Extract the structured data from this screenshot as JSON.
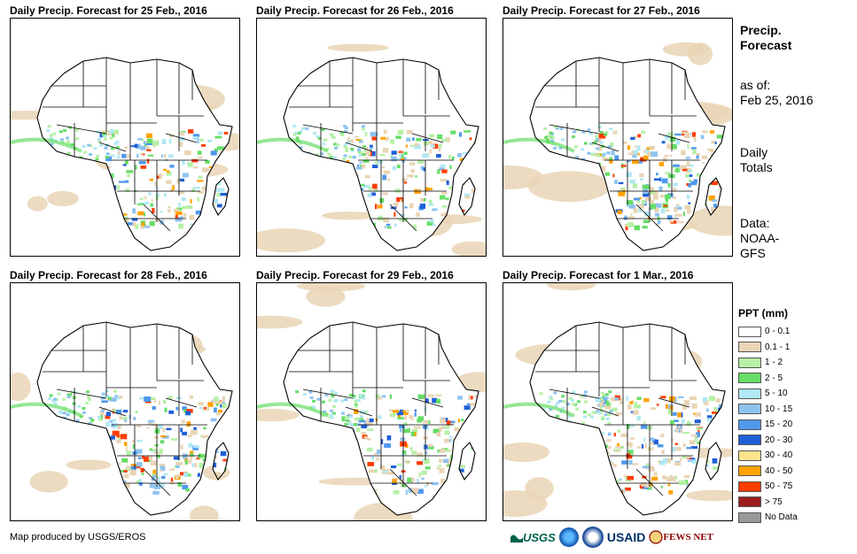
{
  "panels": [
    {
      "title": "Daily Precip. Forecast for 25 Feb., 2016",
      "seed": 11,
      "rain": 0.9
    },
    {
      "title": "Daily Precip. Forecast for 26 Feb., 2016",
      "seed": 23,
      "rain": 0.8
    },
    {
      "title": "Daily Precip. Forecast for 27 Feb., 2016",
      "seed": 37,
      "rain": 1.0
    },
    {
      "title": "Daily Precip. Forecast for 28 Feb., 2016",
      "seed": 41,
      "rain": 0.95
    },
    {
      "title": "Daily Precip. Forecast for 29 Feb., 2016",
      "seed": 53,
      "rain": 0.85
    },
    {
      "title": "Daily Precip. Forecast for 1 Mar., 2016",
      "seed": 67,
      "rain": 0.9
    }
  ],
  "side": {
    "title_line1": "Precip.",
    "title_line2": "Forecast",
    "asof_label": "as of:",
    "asof_date": "Feb 25, 2016",
    "totals_line1": "Daily",
    "totals_line2": "Totals",
    "data_line1": "Data:",
    "data_line2": "NOAA-",
    "data_line3": "GFS"
  },
  "legend": {
    "title": "PPT (mm)",
    "items": [
      {
        "label": "0 - 0.1",
        "color": "#ffffff"
      },
      {
        "label": "0.1 - 1",
        "color": "#e9d5b5"
      },
      {
        "label": "1 - 2",
        "color": "#b6f0a6"
      },
      {
        "label": "2 - 5",
        "color": "#66dd66"
      },
      {
        "label": "5 - 10",
        "color": "#b0e8f4"
      },
      {
        "label": "10 - 15",
        "color": "#8ec3f0"
      },
      {
        "label": "15 - 20",
        "color": "#4f98ec"
      },
      {
        "label": "20 - 30",
        "color": "#1f5fd8"
      },
      {
        "label": "30 - 40",
        "color": "#ffe38a"
      },
      {
        "label": "40 - 50",
        "color": "#ffa200"
      },
      {
        "label": "50 - 75",
        "color": "#ff3c00"
      },
      {
        "label": "> 75",
        "color": "#9a1d1d"
      },
      {
        "label": "No Data",
        "color": "#999999"
      }
    ]
  },
  "credit": "Map produced by USGS/EROS",
  "logos": {
    "usgs": "USGS",
    "usaid": "USAID",
    "fews": "FEWS NET"
  }
}
